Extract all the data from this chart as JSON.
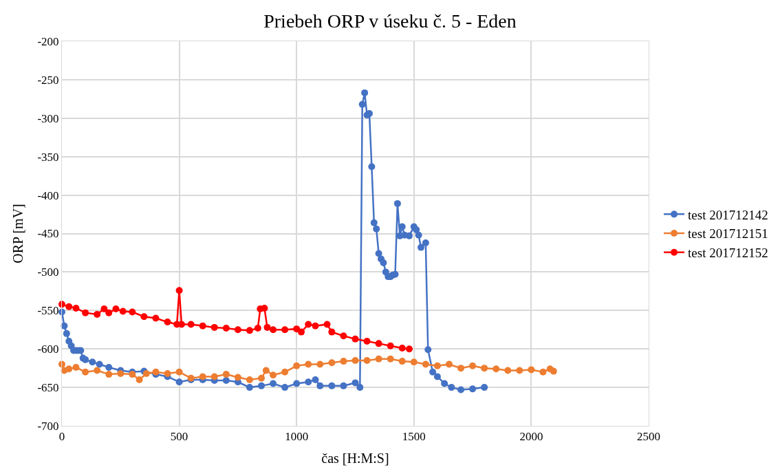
{
  "chart_data": {
    "type": "line",
    "title": "Priebeh ORP v úseku č. 5 - Eden",
    "xlabel": "čas [H:M:S]",
    "ylabel": "ORP [mV]",
    "xlim": [
      0,
      2500
    ],
    "xticks": [
      0,
      500,
      1000,
      1500,
      2000,
      2500
    ],
    "ylim": [
      -700,
      -200
    ],
    "yticks": [
      -700,
      -650,
      -600,
      -550,
      -500,
      -450,
      -400,
      -350,
      -300,
      -250,
      -200
    ],
    "grid": true,
    "legend": "right",
    "marker": "circle",
    "line_style": "solid",
    "series": [
      {
        "name": "test 201712142",
        "color": "#4472c4",
        "x": [
          0,
          10,
          20,
          30,
          40,
          50,
          60,
          70,
          80,
          90,
          100,
          130,
          160,
          200,
          250,
          300,
          350,
          400,
          450,
          500,
          550,
          600,
          650,
          700,
          750,
          800,
          850,
          900,
          950,
          1000,
          1050,
          1080,
          1100,
          1150,
          1200,
          1250,
          1270,
          1280,
          1290,
          1300,
          1310,
          1320,
          1330,
          1340,
          1350,
          1360,
          1370,
          1380,
          1390,
          1400,
          1410,
          1420,
          1430,
          1440,
          1450,
          1460,
          1480,
          1500,
          1510,
          1520,
          1530,
          1550,
          1560,
          1580,
          1600,
          1630,
          1660,
          1700,
          1750,
          1800
        ],
        "values": [
          -552,
          -570,
          -580,
          -590,
          -596,
          -602,
          -602,
          -602,
          -602,
          -612,
          -614,
          -617,
          -620,
          -624,
          -628,
          -630,
          -629,
          -633,
          -636,
          -643,
          -640,
          -640,
          -641,
          -641,
          -643,
          -650,
          -648,
          -645,
          -650,
          -645,
          -643,
          -640,
          -648,
          -648,
          -648,
          -644,
          -650,
          -282,
          -267,
          -296,
          -294,
          -363,
          -436,
          -444,
          -476,
          -483,
          -488,
          -500,
          -506,
          -506,
          -504,
          -503,
          -411,
          -453,
          -441,
          -452,
          -453,
          -441,
          -445,
          -452,
          -468,
          -462,
          -601,
          -630,
          -636,
          -645,
          -650,
          -653,
          -652,
          -650
        ]
      },
      {
        "name": "test 201712151",
        "color": "#ed7d31",
        "x": [
          0,
          10,
          30,
          60,
          100,
          150,
          200,
          250,
          300,
          330,
          360,
          400,
          450,
          500,
          550,
          600,
          650,
          700,
          750,
          800,
          850,
          870,
          900,
          950,
          1000,
          1050,
          1100,
          1150,
          1200,
          1250,
          1300,
          1350,
          1400,
          1450,
          1500,
          1550,
          1600,
          1650,
          1700,
          1750,
          1800,
          1850,
          1900,
          1950,
          2000,
          2050,
          2080,
          2095
        ],
        "values": [
          -620,
          -628,
          -626,
          -624,
          -630,
          -628,
          -633,
          -632,
          -633,
          -640,
          -632,
          -630,
          -632,
          -630,
          -638,
          -636,
          -636,
          -633,
          -637,
          -640,
          -638,
          -628,
          -634,
          -630,
          -622,
          -620,
          -620,
          -618,
          -616,
          -615,
          -615,
          -613,
          -613,
          -616,
          -617,
          -620,
          -622,
          -620,
          -625,
          -622,
          -625,
          -626,
          -628,
          -628,
          -627,
          -630,
          -626,
          -629
        ]
      },
      {
        "name": "test 201712152",
        "color": "#ff0000",
        "x": [
          0,
          30,
          60,
          100,
          150,
          180,
          200,
          230,
          260,
          300,
          350,
          400,
          450,
          490,
          500,
          510,
          550,
          600,
          650,
          700,
          750,
          800,
          835,
          845,
          863,
          875,
          900,
          950,
          1000,
          1020,
          1050,
          1080,
          1130,
          1150,
          1200,
          1250,
          1300,
          1350,
          1400,
          1450,
          1480
        ],
        "values": [
          -542,
          -545,
          -547,
          -553,
          -555,
          -548,
          -553,
          -548,
          -551,
          -552,
          -558,
          -560,
          -565,
          -568,
          -524,
          -568,
          -568,
          -570,
          -572,
          -573,
          -575,
          -576,
          -573,
          -548,
          -547,
          -572,
          -575,
          -575,
          -574,
          -578,
          -568,
          -570,
          -568,
          -578,
          -583,
          -587,
          -590,
          -593,
          -596,
          -599,
          -600
        ]
      }
    ]
  }
}
